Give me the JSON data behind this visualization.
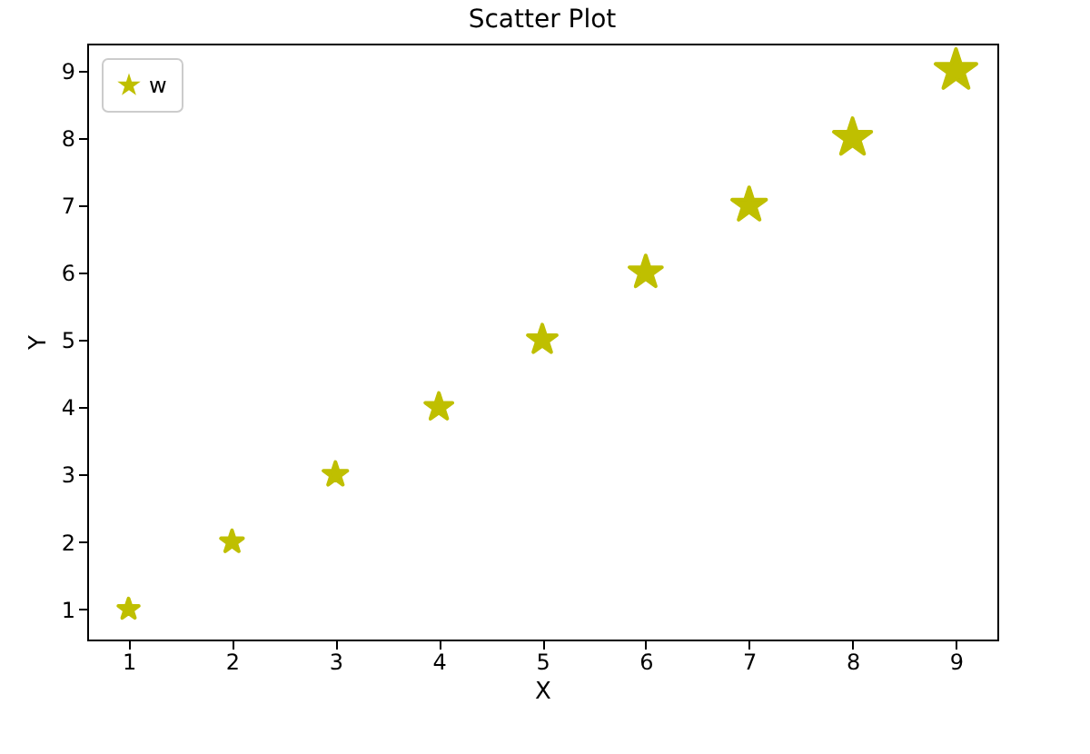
{
  "chart_data": {
    "type": "bubble",
    "title": "Scatter Plot",
    "xlabel": "X",
    "ylabel": "Y",
    "x": [
      1,
      2,
      3,
      4,
      5,
      6,
      7,
      8,
      9
    ],
    "series": [
      {
        "name": "w",
        "color": "#bfbf00",
        "values": [
          1,
          2,
          3,
          4,
          5,
          6,
          7,
          8,
          9
        ],
        "sizes": [
          0.25,
          0.29,
          0.34,
          0.44,
          0.5,
          0.63,
          0.69,
          0.84,
          1
        ]
      }
    ],
    "xlim": [
      0.6,
      9.4
    ],
    "ylim": [
      0.55,
      9.4
    ],
    "xticks": [
      1,
      2,
      3,
      4,
      5,
      6,
      7,
      8,
      9
    ],
    "yticks": [
      1,
      2,
      3,
      4,
      5,
      6,
      7,
      8,
      9
    ],
    "grid": false,
    "legend": "top left",
    "marker": "star"
  }
}
